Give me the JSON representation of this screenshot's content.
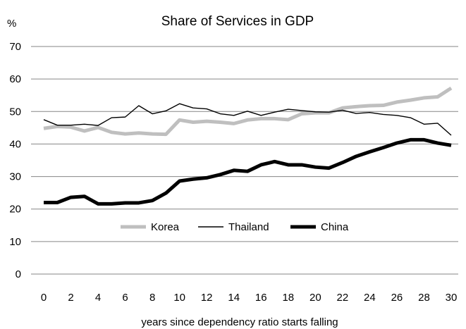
{
  "chart_data": {
    "type": "line",
    "title": "Share of Services in GDP",
    "ylabel": "%",
    "xlabel": "years since dependency ratio starts falling",
    "ylim": [
      0,
      70
    ],
    "yticks": [
      0,
      10,
      20,
      30,
      40,
      50,
      60,
      70
    ],
    "xlim": [
      0,
      30
    ],
    "xticks": [
      0,
      2,
      4,
      6,
      8,
      10,
      12,
      14,
      16,
      18,
      20,
      22,
      24,
      26,
      28,
      30
    ],
    "grid": true,
    "legend_position": "lower-middle",
    "x": [
      0,
      1,
      2,
      3,
      4,
      5,
      6,
      7,
      8,
      9,
      10,
      11,
      12,
      13,
      14,
      15,
      16,
      17,
      18,
      19,
      20,
      21,
      22,
      23,
      24,
      25,
      26,
      27,
      28,
      29,
      30
    ],
    "series": [
      {
        "name": "Korea",
        "color": "#bfbfbf",
        "style": "thick",
        "values": [
          44.8,
          45.4,
          45.2,
          44.0,
          45.1,
          43.6,
          43.1,
          43.4,
          43.1,
          43.0,
          47.4,
          46.7,
          47.0,
          46.7,
          46.3,
          47.4,
          47.8,
          47.8,
          47.5,
          49.3,
          49.6,
          49.6,
          51.1,
          51.5,
          51.8,
          51.9,
          52.9,
          53.5,
          54.2,
          54.5,
          57.2
        ]
      },
      {
        "name": "Thailand",
        "color": "#000000",
        "style": "thin",
        "values": [
          47.5,
          45.8,
          45.8,
          46.1,
          45.7,
          48.1,
          48.3,
          51.8,
          49.3,
          50.2,
          52.4,
          51.1,
          50.8,
          49.3,
          48.8,
          50.1,
          48.8,
          49.8,
          50.7,
          50.3,
          49.9,
          49.8,
          50.4,
          49.4,
          49.7,
          49.1,
          48.8,
          48.1,
          46.1,
          46.4,
          42.7
        ]
      },
      {
        "name": "China",
        "color": "#000000",
        "style": "bold",
        "values": [
          22.0,
          22.0,
          23.6,
          23.9,
          21.6,
          21.6,
          21.9,
          21.9,
          22.6,
          24.9,
          28.6,
          29.2,
          29.6,
          30.6,
          31.9,
          31.6,
          33.6,
          34.6,
          33.6,
          33.6,
          32.9,
          32.6,
          34.3,
          36.2,
          37.6,
          38.9,
          40.3,
          41.3,
          41.3,
          40.3,
          39.6
        ]
      }
    ]
  }
}
